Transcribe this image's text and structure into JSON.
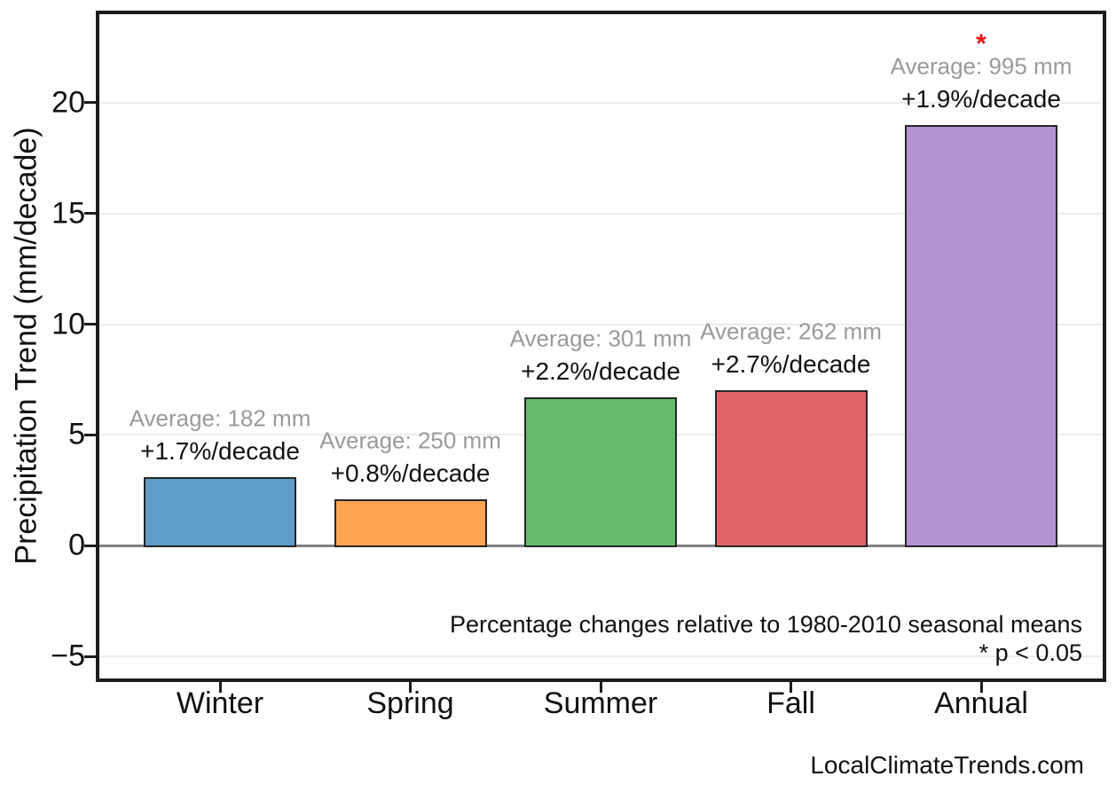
{
  "figure": {
    "watermark": "LocalClimateTrends.com"
  },
  "chart_data": {
    "type": "bar",
    "title": "",
    "xlabel": "",
    "ylabel": "Precipitation Trend (mm/decade)",
    "categories": [
      "Winter",
      "Spring",
      "Summer",
      "Fall",
      "Annual"
    ],
    "values": [
      3.1,
      2.1,
      6.7,
      7.0,
      19.0
    ],
    "units": "mm/decade",
    "bar_colors": [
      "#5E9DC8",
      "#FFA452",
      "#65BB6B",
      "#E16566",
      "#B193D2"
    ],
    "bar_edge_color": "#262626",
    "seasonal_averages_mm": [
      182,
      250,
      301,
      262,
      995
    ],
    "avg_labels": [
      "Average: 182 mm",
      "Average: 250 mm",
      "Average: 301 mm",
      "Average: 262 mm",
      "Average: 995 mm"
    ],
    "pct_per_decade": [
      1.7,
      0.8,
      2.2,
      2.7,
      1.9
    ],
    "pct_labels": [
      "+1.7%/decade",
      "+0.8%/decade",
      "+2.2%/decade",
      "+2.7%/decade",
      "+1.9%/decade"
    ],
    "significant": [
      false,
      false,
      false,
      false,
      true
    ],
    "significance_marker": "*",
    "significance_color": "#F01414",
    "avg_label_color": "#9a9a9a",
    "y_ticks": [
      20,
      15,
      10,
      5,
      0,
      -5
    ],
    "y_tick_labels": [
      "20",
      "15",
      "10",
      "5",
      "0",
      "−5"
    ],
    "ylim": [
      -6,
      24
    ],
    "grid": true,
    "gridline_color": "#ececec",
    "zero_line_color": "#808080",
    "legend_position": "none",
    "annotations": [
      "Percentage changes relative to 1980-2010 seasonal means",
      "* p < 0.05"
    ]
  }
}
